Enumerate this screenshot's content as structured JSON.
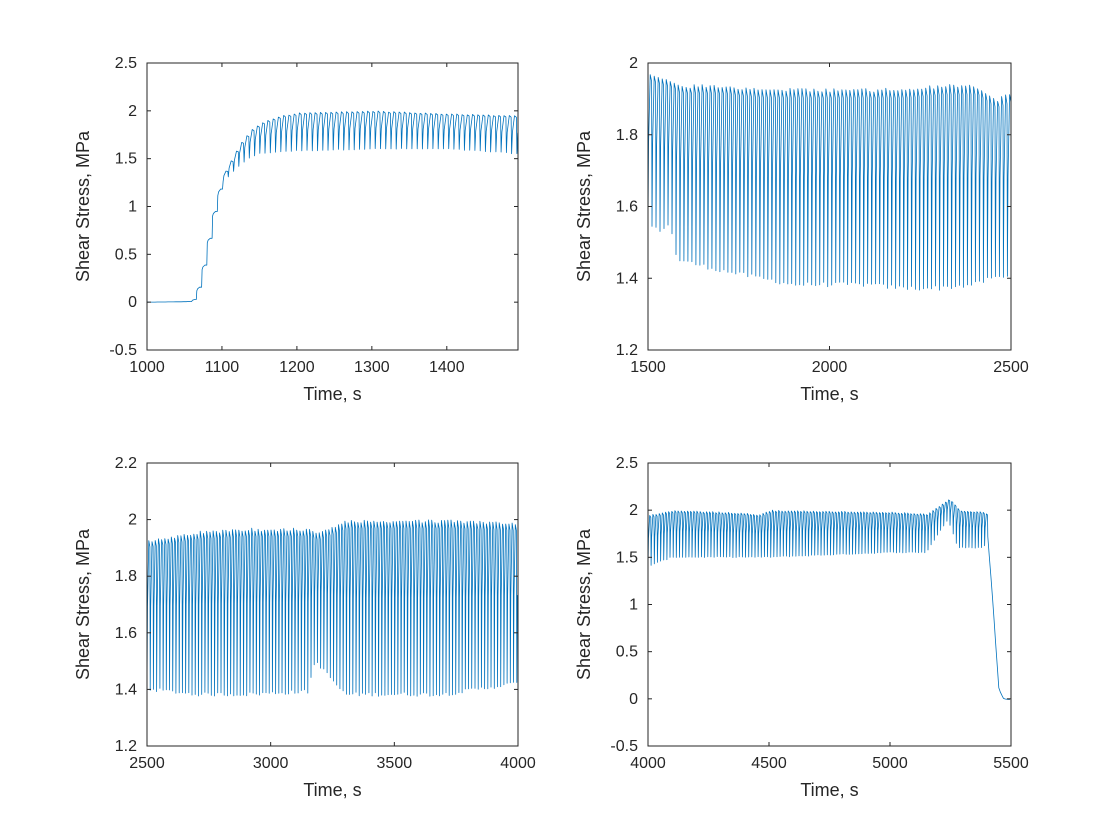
{
  "figure": {
    "line_color": "#0072BD",
    "axis_color": "#262626",
    "background": "#ffffff"
  },
  "chart_data": [
    {
      "type": "line",
      "xlabel": "Time, s",
      "ylabel": "Shear Stress, MPa",
      "xlim": [
        1000,
        1495
      ],
      "ylim": [
        -0.5,
        2.5
      ],
      "xticks": [
        1000,
        1100,
        1200,
        1300,
        1400
      ],
      "yticks": [
        -0.5,
        0,
        0.5,
        1,
        1.5,
        2,
        2.5
      ],
      "yticklabels": [
        "-0.5",
        "0",
        "0.5",
        "1",
        "1.5",
        "2",
        "2.5"
      ],
      "grid": false,
      "series": [
        {
          "period": 7,
          "envelope": [
            [
              1000,
              0,
              0
            ],
            [
              1055,
              0,
              0.01
            ],
            [
              1062,
              0.01,
              0.04
            ],
            [
              1070,
              0.2,
              0.25
            ],
            [
              1080,
              0.6,
              0.65
            ],
            [
              1090,
              1.0,
              1.05
            ],
            [
              1100,
              1.25,
              1.35
            ],
            [
              1110,
              1.32,
              1.5
            ],
            [
              1120,
              1.4,
              1.65
            ],
            [
              1135,
              1.5,
              1.8
            ],
            [
              1150,
              1.55,
              1.88
            ],
            [
              1175,
              1.57,
              1.95
            ],
            [
              1200,
              1.58,
              1.98
            ],
            [
              1300,
              1.6,
              2.0
            ],
            [
              1400,
              1.6,
              1.97
            ],
            [
              1495,
              1.55,
              1.95
            ]
          ]
        }
      ]
    },
    {
      "type": "line",
      "xlabel": "Time, s",
      "ylabel": "Shear Stress, MPa",
      "xlim": [
        1500,
        2500
      ],
      "ylim": [
        1.2,
        2.0
      ],
      "xticks": [
        1500,
        2000,
        2500
      ],
      "yticks": [
        1.2,
        1.4,
        1.6,
        1.8,
        2.0
      ],
      "yticklabels": [
        "1.2",
        "1.4",
        "1.6",
        "1.8",
        "2"
      ],
      "grid": false,
      "series": [
        {
          "period": 11,
          "envelope": [
            [
              1500,
              1.55,
              1.97
            ],
            [
              1530,
              1.53,
              1.96
            ],
            [
              1560,
              1.55,
              1.95
            ],
            [
              1580,
              1.45,
              1.94
            ],
            [
              1700,
              1.42,
              1.94
            ],
            [
              1800,
              1.4,
              1.93
            ],
            [
              1900,
              1.38,
              1.93
            ],
            [
              2000,
              1.38,
              1.93
            ],
            [
              2100,
              1.38,
              1.93
            ],
            [
              2200,
              1.37,
              1.93
            ],
            [
              2300,
              1.37,
              1.94
            ],
            [
              2400,
              1.38,
              1.94
            ],
            [
              2450,
              1.4,
              1.9
            ],
            [
              2500,
              1.4,
              1.92
            ]
          ]
        }
      ]
    },
    {
      "type": "line",
      "xlabel": "Time, s",
      "ylabel": "Shear Stress, MPa",
      "xlim": [
        2500,
        4000
      ],
      "ylim": [
        1.2,
        2.2
      ],
      "xticks": [
        2500,
        3000,
        3500,
        4000
      ],
      "yticks": [
        1.2,
        1.4,
        1.6,
        1.8,
        2.0,
        2.2
      ],
      "yticklabels": [
        "1.2",
        "1.4",
        "1.6",
        "1.8",
        "2",
        "2.2"
      ],
      "grid": false,
      "series": [
        {
          "period": 13,
          "envelope": [
            [
              2500,
              1.4,
              1.93
            ],
            [
              2700,
              1.38,
              1.96
            ],
            [
              2900,
              1.38,
              1.97
            ],
            [
              3150,
              1.39,
              1.97
            ],
            [
              3180,
              1.5,
              1.95
            ],
            [
              3300,
              1.38,
              2.0
            ],
            [
              3500,
              1.38,
              2.0
            ],
            [
              3700,
              1.38,
              2.0
            ],
            [
              4000,
              1.42,
              1.99
            ]
          ]
        }
      ]
    },
    {
      "type": "line",
      "xlabel": "Time, s",
      "ylabel": "Shear Stress, MPa",
      "xlim": [
        4000,
        5500
      ],
      "ylim": [
        -0.5,
        2.5
      ],
      "xticks": [
        4000,
        4500,
        5000,
        5500
      ],
      "yticks": [
        -0.5,
        0,
        0.5,
        1,
        1.5,
        2,
        2.5
      ],
      "yticklabels": [
        "-0.5",
        "0",
        "0.5",
        "1",
        "1.5",
        "2",
        "2.5"
      ],
      "grid": false,
      "series": [
        {
          "period": 13,
          "envelope": [
            [
              4000,
              1.4,
              1.95
            ],
            [
              4100,
              1.5,
              2.0
            ],
            [
              4400,
              1.5,
              1.97
            ],
            [
              4450,
              1.5,
              1.95
            ],
            [
              4500,
              1.5,
              2.0
            ],
            [
              5000,
              1.55,
              1.98
            ],
            [
              5150,
              1.55,
              1.96
            ],
            [
              5200,
              1.75,
              2.05
            ],
            [
              5240,
              1.9,
              2.12
            ],
            [
              5280,
              1.6,
              2.0
            ],
            [
              5390,
              1.6,
              1.98
            ],
            [
              5400,
              1.85,
              1.85
            ],
            [
              5420,
              1.2,
              1.2
            ],
            [
              5450,
              0.1,
              0.1
            ],
            [
              5470,
              0.0,
              0.0
            ],
            [
              5500,
              -0.01,
              -0.01
            ]
          ]
        }
      ]
    }
  ]
}
